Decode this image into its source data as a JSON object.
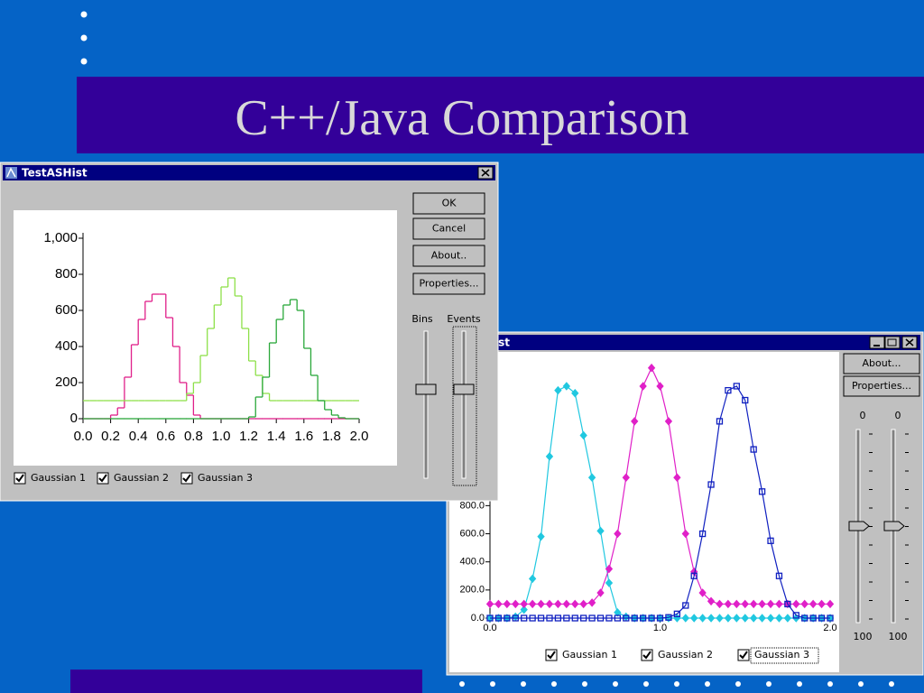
{
  "slide": {
    "title": "C++/Java Comparison"
  },
  "windows": [
    {
      "title": "TestASHist",
      "buttons": [
        "OK",
        "Cancel",
        "About..",
        "Properties..."
      ],
      "slider_labels": [
        "Bins",
        "Events"
      ]
    },
    {
      "title": "ASHist",
      "buttons": [
        "About...",
        "Properties..."
      ],
      "sliders": [
        {
          "top": 0,
          "bottom": 100
        },
        {
          "top": 0,
          "bottom": 100
        }
      ]
    }
  ],
  "chart_data": [
    {
      "type": "histogram",
      "bins": [
        0,
        0.05,
        0.1,
        0.15,
        0.2,
        0.25,
        0.3,
        0.35,
        0.4,
        0.45,
        0.5,
        0.55,
        0.6,
        0.65,
        0.7,
        0.75,
        0.8,
        0.85,
        0.9,
        0.95,
        1,
        1.05,
        1.1,
        1.15,
        1.2,
        1.25,
        1.3,
        1.35,
        1.4,
        1.45,
        1.5,
        1.55,
        1.6,
        1.65,
        1.7,
        1.75,
        1.8,
        1.85,
        1.9,
        1.95,
        2
      ],
      "series": [
        {
          "name": "Gaussian 1",
          "color": "#e0208a",
          "values": [
            0,
            0,
            0,
            0,
            20,
            60,
            230,
            410,
            550,
            650,
            690,
            690,
            560,
            400,
            200,
            130,
            20,
            0,
            0,
            0,
            0,
            0,
            0,
            0,
            0,
            0,
            0,
            0,
            0,
            0,
            0,
            0,
            0,
            0,
            0,
            0,
            0,
            0,
            0,
            0
          ]
        },
        {
          "name": "Gaussian 2",
          "color": "#8ee04a",
          "values": [
            100,
            100,
            100,
            100,
            100,
            100,
            100,
            100,
            100,
            100,
            100,
            100,
            100,
            100,
            100,
            140,
            200,
            350,
            500,
            630,
            730,
            780,
            680,
            500,
            320,
            240,
            140,
            100,
            100,
            100,
            100,
            100,
            100,
            100,
            100,
            100,
            100,
            100,
            100,
            100
          ]
        },
        {
          "name": "Gaussian 3",
          "color": "#2aa83a",
          "values": [
            0,
            0,
            0,
            0,
            0,
            0,
            0,
            0,
            0,
            0,
            0,
            0,
            0,
            0,
            0,
            0,
            0,
            0,
            0,
            0,
            0,
            0,
            0,
            0,
            10,
            120,
            230,
            420,
            550,
            630,
            660,
            600,
            390,
            240,
            100,
            50,
            20,
            5,
            0,
            0
          ]
        }
      ],
      "xlim": [
        0,
        2
      ],
      "ylim": [
        0,
        1000
      ],
      "xticks": [
        {
          "value": 0,
          "label": "0.0"
        },
        {
          "value": 0.2,
          "label": "0.2"
        },
        {
          "value": 0.4,
          "label": "0.4"
        },
        {
          "value": 0.6,
          "label": "0.6"
        },
        {
          "value": 0.8,
          "label": "0.8"
        },
        {
          "value": 1,
          "label": "1.0"
        },
        {
          "value": 1.2,
          "label": "1.2"
        },
        {
          "value": 1.4,
          "label": "1.4"
        },
        {
          "value": 1.6,
          "label": "1.6"
        },
        {
          "value": 1.8,
          "label": "1.8"
        },
        {
          "value": 2,
          "label": "2.0"
        }
      ],
      "yticks": [
        0,
        200,
        400,
        600,
        800,
        {
          "value": 1000,
          "label": "1,000"
        }
      ]
    },
    {
      "type": "line",
      "x": [
        0,
        0.05,
        0.1,
        0.15,
        0.2,
        0.25,
        0.3,
        0.35,
        0.4,
        0.45,
        0.5,
        0.55,
        0.6,
        0.65,
        0.7,
        0.75,
        0.8,
        0.85,
        0.9,
        0.95,
        1,
        1.05,
        1.1,
        1.15,
        1.2,
        1.25,
        1.3,
        1.35,
        1.4,
        1.45,
        1.5,
        1.55,
        1.6,
        1.65,
        1.7,
        1.75,
        1.8,
        1.85,
        1.9,
        1.95,
        2
      ],
      "series": [
        {
          "name": "Gaussian 1",
          "color": "#20c8e0",
          "marker": "diamond",
          "values": [
            0,
            0,
            0,
            10,
            60,
            280,
            580,
            1150,
            1620,
            1650,
            1600,
            1300,
            1000,
            620,
            250,
            40,
            10,
            0,
            0,
            0,
            0,
            0,
            0,
            0,
            0,
            0,
            0,
            0,
            0,
            0,
            0,
            0,
            0,
            0,
            0,
            0,
            0,
            0,
            0,
            0,
            0
          ]
        },
        {
          "name": "Gaussian 2",
          "color": "#e020c8",
          "marker": "diamond",
          "values": [
            100,
            100,
            100,
            100,
            100,
            100,
            100,
            100,
            100,
            100,
            100,
            100,
            110,
            180,
            350,
            600,
            1000,
            1400,
            1650,
            1780,
            1650,
            1400,
            1000,
            600,
            330,
            180,
            120,
            100,
            100,
            100,
            100,
            100,
            100,
            100,
            100,
            100,
            100,
            100,
            100,
            100,
            100
          ]
        },
        {
          "name": "Gaussian 3",
          "color": "#1020c0",
          "marker": "square",
          "values": [
            0,
            0,
            0,
            0,
            0,
            0,
            0,
            0,
            0,
            0,
            0,
            0,
            0,
            0,
            0,
            0,
            0,
            0,
            0,
            0,
            0,
            5,
            30,
            90,
            300,
            600,
            950,
            1400,
            1620,
            1650,
            1550,
            1200,
            900,
            550,
            300,
            100,
            20,
            0,
            0,
            0,
            0
          ]
        }
      ],
      "xlim": [
        0,
        2
      ],
      "ylim": [
        0,
        1900
      ],
      "xticks": [
        {
          "value": 0,
          "label": "0.0"
        },
        {
          "value": 1,
          "label": "1.0"
        },
        {
          "value": 2,
          "label": "2.0"
        }
      ],
      "yticks": [
        {
          "value": 0,
          "label": "0.0"
        },
        {
          "value": 200,
          "label": "200.0"
        },
        {
          "value": 400,
          "label": "400.0"
        },
        {
          "value": 600,
          "label": "600.0"
        },
        {
          "value": 800,
          "label": "800.0"
        }
      ]
    }
  ]
}
